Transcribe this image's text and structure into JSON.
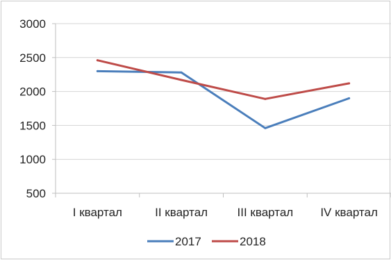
{
  "chart_data": {
    "type": "line",
    "categories": [
      "I квартал",
      "II квартал",
      "III квартал",
      "IV квартал"
    ],
    "series": [
      {
        "name": "2017",
        "values": [
          2300,
          2280,
          1460,
          1900
        ],
        "color": "#4a7ebb"
      },
      {
        "name": "2018",
        "values": [
          2460,
          2170,
          1890,
          2120
        ],
        "color": "#be4b48"
      }
    ],
    "y_ticks": [
      "3000",
      "2500",
      "2000",
      "1500",
      "1000",
      "500"
    ],
    "ylim": [
      500,
      3000
    ],
    "y_tick_values": [
      3000,
      2500,
      2000,
      1500,
      1000,
      500
    ],
    "grid": true,
    "legend_position": "bottom",
    "title": "",
    "xlabel": "",
    "ylabel": ""
  }
}
